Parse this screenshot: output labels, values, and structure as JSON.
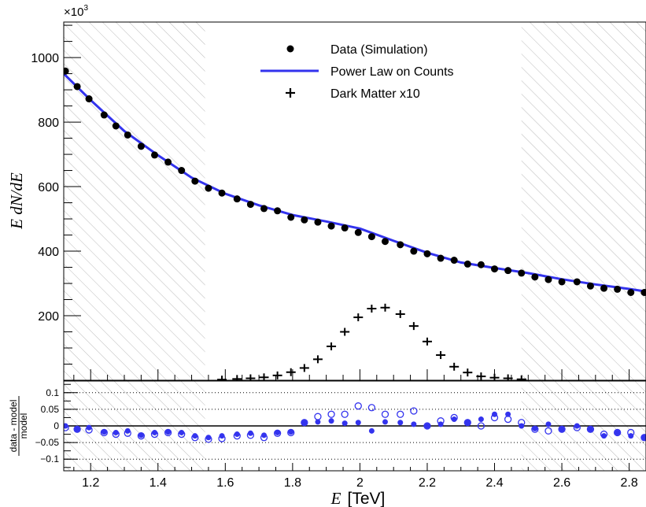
{
  "chart_data": [
    {
      "type": "scatter",
      "panel": "main",
      "ylabel": "E dN/dE",
      "yexponent": "×10",
      "yexponent_sup": "3",
      "xlim": [
        1.12,
        2.85
      ],
      "ylim": [
        0,
        1110
      ],
      "yticks": [
        200,
        400,
        600,
        800,
        1000
      ],
      "grid": false,
      "legend_position": "top-center",
      "hatched_x_ranges": [
        [
          1.12,
          1.54
        ],
        [
          2.48,
          2.85
        ]
      ],
      "x": [
        1.125,
        1.16,
        1.195,
        1.24,
        1.275,
        1.31,
        1.35,
        1.39,
        1.43,
        1.47,
        1.51,
        1.55,
        1.59,
        1.635,
        1.675,
        1.715,
        1.755,
        1.795,
        1.835,
        1.875,
        1.915,
        1.955,
        1.995,
        2.035,
        2.075,
        2.12,
        2.16,
        2.2,
        2.24,
        2.28,
        2.32,
        2.36,
        2.4,
        2.44,
        2.48,
        2.52,
        2.56,
        2.6,
        2.645,
        2.685,
        2.725,
        2.765,
        2.805,
        2.845
      ],
      "series": [
        {
          "name": "Data (Simulation)",
          "marker": "filled-circle",
          "color": "#000000",
          "values": [
            958,
            910,
            872,
            822,
            788,
            760,
            725,
            698,
            676,
            650,
            617,
            595,
            580,
            562,
            545,
            532,
            525,
            505,
            497,
            490,
            478,
            472,
            458,
            445,
            430,
            420,
            400,
            392,
            378,
            372,
            360,
            358,
            345,
            340,
            332,
            320,
            312,
            305,
            305,
            292,
            285,
            282,
            272,
            272
          ]
        },
        {
          "name": "Power Law on Counts",
          "style": "line",
          "color": "#3333ee",
          "x": [
            1.12,
            1.2,
            1.3,
            1.4,
            1.5,
            1.6,
            1.7,
            1.8,
            1.9,
            2.0,
            2.1,
            2.2,
            2.3,
            2.4,
            2.5,
            2.6,
            2.7,
            2.8,
            2.85
          ],
          "values": [
            950,
            868,
            772,
            697,
            628,
            578,
            542,
            512,
            492,
            470,
            432,
            395,
            365,
            348,
            332,
            313,
            297,
            283,
            275
          ]
        },
        {
          "name": "Dark Matter x10",
          "marker": "cross",
          "color": "#000000",
          "x": [
            1.59,
            1.635,
            1.675,
            1.715,
            1.755,
            1.795,
            1.835,
            1.875,
            1.915,
            1.955,
            1.995,
            2.035,
            2.075,
            2.12,
            2.16,
            2.2,
            2.24,
            2.28,
            2.32,
            2.36,
            2.4,
            2.44,
            2.48
          ],
          "values": [
            2,
            4,
            6,
            9,
            15,
            25,
            38,
            65,
            105,
            150,
            195,
            222,
            225,
            205,
            168,
            120,
            78,
            42,
            24,
            12,
            8,
            6,
            3
          ]
        }
      ]
    },
    {
      "type": "scatter",
      "panel": "ratio",
      "ylabel_num": "data - model",
      "ylabel_den": "model",
      "xlabel": "E",
      "xlabel_unit": "[TeV]",
      "xlim": [
        1.12,
        2.85
      ],
      "ylim": [
        -0.135,
        0.135
      ],
      "xticks": [
        1.2,
        1.4,
        1.6,
        1.8,
        2,
        2.2,
        2.4,
        2.6,
        2.8
      ],
      "yticks": [
        -0.1,
        -0.05,
        0,
        0.05,
        0.1
      ],
      "ytick_labels": [
        "−0.1",
        "−0.05",
        "0",
        "0.05",
        "0.1"
      ],
      "grid": "horizontal-dotted",
      "hatched_x_ranges": [
        [
          1.12,
          1.54
        ],
        [
          2.48,
          2.85
        ]
      ],
      "x": [
        1.125,
        1.16,
        1.195,
        1.24,
        1.275,
        1.31,
        1.35,
        1.39,
        1.43,
        1.47,
        1.51,
        1.55,
        1.59,
        1.635,
        1.675,
        1.715,
        1.755,
        1.795,
        1.835,
        1.875,
        1.915,
        1.955,
        1.995,
        2.035,
        2.075,
        2.12,
        2.16,
        2.2,
        2.24,
        2.28,
        2.32,
        2.36,
        2.4,
        2.44,
        2.48,
        2.52,
        2.56,
        2.6,
        2.645,
        2.685,
        2.725,
        2.765,
        2.805,
        2.845
      ],
      "series": [
        {
          "marker": "filled-circle",
          "color": "#3333ee",
          "values": [
            0.0,
            -0.01,
            -0.005,
            -0.018,
            -0.02,
            -0.015,
            -0.028,
            -0.02,
            -0.018,
            -0.02,
            -0.03,
            -0.035,
            -0.03,
            -0.025,
            -0.022,
            -0.028,
            -0.02,
            -0.018,
            0.01,
            0.012,
            0.015,
            0.008,
            0.01,
            -0.015,
            0.012,
            0.01,
            0.005,
            0.0,
            0.005,
            0.02,
            0.01,
            0.02,
            0.035,
            0.035,
            0.0,
            -0.008,
            0.005,
            -0.01,
            0.0,
            -0.01,
            -0.03,
            -0.02,
            -0.03,
            -0.035
          ]
        },
        {
          "marker": "open-circle",
          "color": "#3333ee",
          "values": [
            -0.005,
            -0.01,
            -0.012,
            -0.02,
            -0.025,
            -0.022,
            -0.03,
            -0.025,
            -0.02,
            -0.025,
            -0.035,
            -0.04,
            -0.038,
            -0.03,
            -0.028,
            -0.035,
            -0.022,
            -0.02,
            0.01,
            0.028,
            0.035,
            0.035,
            0.06,
            0.055,
            0.035,
            0.035,
            0.045,
            0.0,
            0.015,
            0.025,
            0.01,
            0.0,
            0.025,
            0.02,
            0.01,
            -0.01,
            -0.015,
            -0.01,
            -0.005,
            -0.01,
            -0.025,
            -0.02,
            -0.02,
            -0.035
          ]
        }
      ]
    }
  ]
}
